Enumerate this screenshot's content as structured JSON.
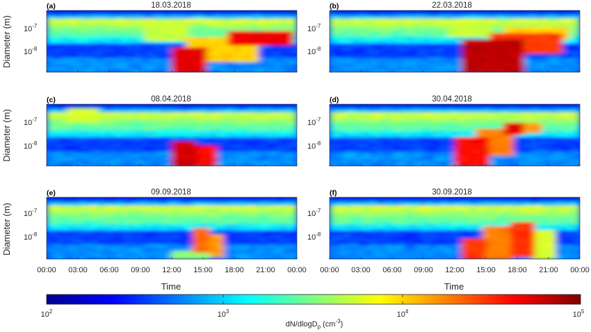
{
  "chart_data": [
    {
      "type": "heatmap",
      "panel_label": "(a)",
      "title": "18.03.2018"
    },
    {
      "type": "heatmap",
      "panel_label": "(b)",
      "title": "22.03.2018"
    },
    {
      "type": "heatmap",
      "panel_label": "(c)",
      "title": "08.04.2018"
    },
    {
      "type": "heatmap",
      "panel_label": "(d)",
      "title": "30.04.2018"
    },
    {
      "type": "heatmap",
      "panel_label": "(e)",
      "title": "09.09.2018"
    },
    {
      "type": "heatmap",
      "panel_label": "(f)",
      "title": "30.09.2018"
    }
  ],
  "axes": {
    "ylabel": "Diameter (m)",
    "xlabel": "Time",
    "y_ticks": [
      {
        "base": "10",
        "exp": "-7"
      },
      {
        "base": "10",
        "exp": "-8"
      }
    ],
    "x_ticks": [
      "00:00",
      "03:00",
      "06:00",
      "09:00",
      "12:00",
      "15:00",
      "18:00",
      "21:00",
      "00:00"
    ]
  },
  "colorbar": {
    "label_main": "dN/dlogD",
    "label_sub": "p",
    "label_unit_pre": " (cm",
    "label_unit_exp": "-3",
    "label_unit_post": ")",
    "ticks": [
      {
        "base": "10",
        "exp": "2"
      },
      {
        "base": "10",
        "exp": "3"
      },
      {
        "base": "10",
        "exp": "4"
      },
      {
        "base": "10",
        "exp": "5"
      }
    ],
    "colormap": "jet"
  }
}
